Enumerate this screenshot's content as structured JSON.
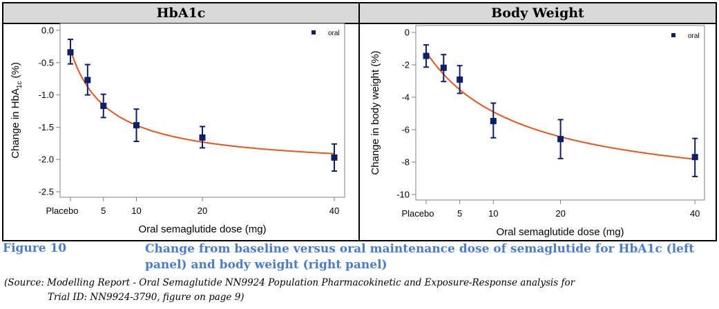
{
  "panels_header": {
    "left": "HbA1c",
    "right": "Body Weight"
  },
  "chart_data": [
    {
      "type": "scatter",
      "title": "HbA1c",
      "xlabel": "Oral semaglutide dose (mg)",
      "ylabel_main": "Change in HbA",
      "ylabel_sub": "1c",
      "ylabel_end": " (%)",
      "ylim": [
        -2.5,
        0.0
      ],
      "yticks": [
        0.0,
        -0.5,
        -1.0,
        -1.5,
        -2.0,
        -2.5
      ],
      "ytick_labels": [
        "0.0",
        "-0.5",
        "-1.0",
        "-1.5",
        "-2.0",
        "-2.5"
      ],
      "xticks": [
        0,
        5,
        10,
        20,
        40
      ],
      "xtick_labels": [
        "Placebo",
        "5",
        "10",
        "20",
        "40"
      ],
      "grid": false,
      "legend": {
        "position": "top-right",
        "entries": [
          "oral"
        ]
      },
      "series": [
        {
          "name": "oral",
          "x": [
            0,
            2.6,
            5,
            10,
            20,
            40
          ],
          "y": [
            -0.34,
            -0.77,
            -1.17,
            -1.47,
            -1.66,
            -1.97
          ],
          "ci_upper": [
            -0.14,
            -0.53,
            -0.99,
            -1.22,
            -1.49,
            -1.76
          ],
          "ci_lower": [
            -0.52,
            -1.0,
            -1.35,
            -1.72,
            -1.82,
            -2.18
          ]
        }
      ],
      "fit_curve": {
        "model": "Emax",
        "E0": -0.3,
        "Emax": -1.84,
        "ED50": 5.73,
        "x_range": [
          0,
          40
        ]
      },
      "colors": {
        "marker": "#0b1f6b",
        "curve": "#e8531b"
      }
    },
    {
      "type": "scatter",
      "title": "Body Weight",
      "xlabel": "Oral semaglutide dose (mg)",
      "ylabel_main": "Change in body weight (%)",
      "ylabel_sub": "",
      "ylabel_end": "",
      "ylim": [
        -10,
        0
      ],
      "yticks": [
        0,
        -2,
        -4,
        -6,
        -8,
        -10
      ],
      "ytick_labels": [
        "0",
        "-2",
        "-4",
        "-6",
        "-8",
        "-10"
      ],
      "xticks": [
        0,
        5,
        10,
        20,
        40
      ],
      "xtick_labels": [
        "Placebo",
        "5",
        "10",
        "20",
        "40"
      ],
      "grid": false,
      "legend": {
        "position": "top-right",
        "entries": [
          "oral"
        ]
      },
      "series": [
        {
          "name": "oral",
          "x": [
            0,
            2.6,
            5,
            10,
            20,
            40
          ],
          "y": [
            -1.45,
            -2.18,
            -2.91,
            -5.47,
            -6.58,
            -7.69
          ],
          "ci_upper": [
            -0.77,
            -1.37,
            -2.05,
            -4.36,
            -5.38,
            -6.54
          ],
          "ci_lower": [
            -2.14,
            -3.03,
            -3.76,
            -6.5,
            -7.78,
            -8.89
          ]
        }
      ],
      "fit_curve": {
        "model": "Emax",
        "E0": -1.2,
        "Emax": -8.98,
        "ED50": 14.27,
        "x_range": [
          0,
          40
        ]
      },
      "colors": {
        "marker": "#0b1f6b",
        "curve": "#e8531b"
      }
    }
  ],
  "caption": {
    "figure_number": "Figure 10",
    "title": "Change from baseline versus oral maintenance dose of semaglutide for HbA1c (left panel) and body weight (right panel)",
    "source_line1": "(Source:  Modelling Report - Oral Semaglutide NN9924 Population Pharmacokinetic and Exposure-Response analysis for",
    "source_line2": "Trial ID: NN9924-3790, figure on page 9)"
  }
}
